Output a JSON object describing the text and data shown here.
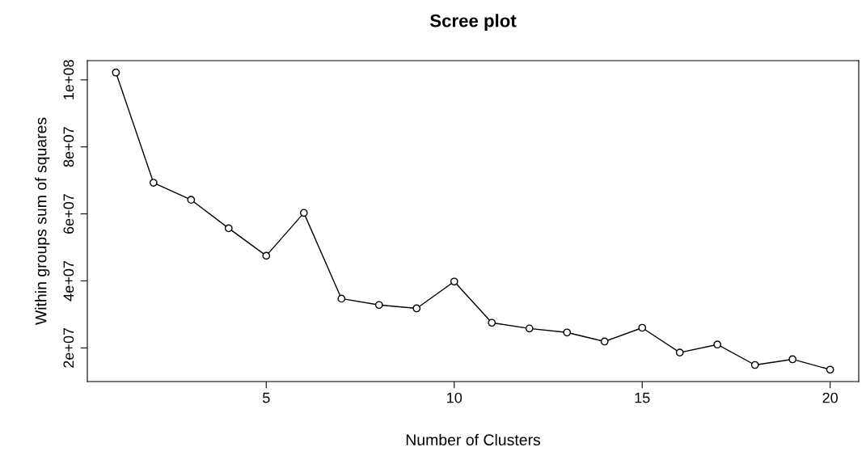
{
  "chart_data": {
    "type": "line",
    "title": "Scree plot",
    "xlabel": "Number of Clusters",
    "ylabel": "Within groups sum of squares",
    "x": [
      1,
      2,
      3,
      4,
      5,
      6,
      7,
      8,
      9,
      10,
      11,
      12,
      13,
      14,
      15,
      16,
      17,
      18,
      19,
      20
    ],
    "series": [
      {
        "color": "#000000",
        "values": [
          102200000,
          69300000,
          64200000,
          55700000,
          47500000,
          60300000,
          34700000,
          32800000,
          31800000,
          39800000,
          27500000,
          25800000,
          24600000,
          21900000,
          26000000,
          18600000,
          21000000,
          14900000,
          16600000,
          13500000
        ]
      }
    ],
    "xlim": [
      0.24,
      20.76
    ],
    "xticks": [
      5,
      10,
      15,
      20
    ],
    "ylim": [
      9950000,
      105750000
    ],
    "yticks": [
      {
        "value": 20000000,
        "label": "2e+07"
      },
      {
        "value": 40000000,
        "label": "4e+07"
      },
      {
        "value": 60000000,
        "label": "6e+07"
      },
      {
        "value": 80000000,
        "label": "8e+07"
      },
      {
        "value": 100000000,
        "label": "1e+08"
      }
    ],
    "marker": "circle",
    "line_style": "solid",
    "grid": false,
    "legend": false
  }
}
